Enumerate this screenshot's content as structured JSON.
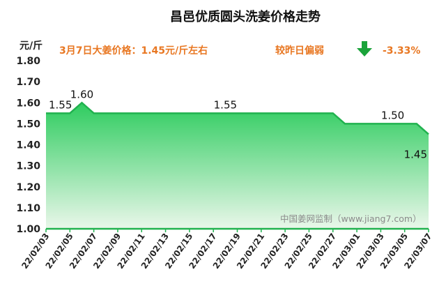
{
  "chart_data": {
    "type": "area",
    "title": "昌邑优质圆头洗姜价格走势",
    "ylabel": "元/斤",
    "ylim": [
      1.0,
      1.8
    ],
    "yticks": [
      "1.00",
      "1.10",
      "1.20",
      "1.30",
      "1.40",
      "1.50",
      "1.60",
      "1.70",
      "1.80"
    ],
    "x_ticks": [
      "22/02/03",
      "22/02/05",
      "22/02/07",
      "22/02/09",
      "22/02/11",
      "22/02/13",
      "22/02/15",
      "22/02/17",
      "22/02/19",
      "22/02/21",
      "22/02/23",
      "22/02/25",
      "22/02/27",
      "22/03/01",
      "22/03/03",
      "22/03/05",
      "22/03/07"
    ],
    "x": [
      "22/02/03",
      "22/02/04",
      "22/02/05",
      "22/02/06",
      "22/02/07",
      "22/02/08",
      "22/02/09",
      "22/02/10",
      "22/02/11",
      "22/02/12",
      "22/02/13",
      "22/02/14",
      "22/02/15",
      "22/02/16",
      "22/02/17",
      "22/02/18",
      "22/02/19",
      "22/02/20",
      "22/02/21",
      "22/02/22",
      "22/02/23",
      "22/02/24",
      "22/02/25",
      "22/02/26",
      "22/02/27",
      "22/02/28",
      "22/03/01",
      "22/03/02",
      "22/03/03",
      "22/03/04",
      "22/03/05",
      "22/03/06",
      "22/03/07"
    ],
    "values": [
      1.55,
      1.55,
      1.55,
      1.6,
      1.55,
      1.55,
      1.55,
      1.55,
      1.55,
      1.55,
      1.55,
      1.55,
      1.55,
      1.55,
      1.55,
      1.55,
      1.55,
      1.55,
      1.55,
      1.55,
      1.55,
      1.55,
      1.55,
      1.55,
      1.55,
      1.5,
      1.5,
      1.5,
      1.5,
      1.5,
      1.5,
      1.5,
      1.45
    ],
    "data_labels": [
      {
        "index": 0,
        "text": "1.55"
      },
      {
        "index": 3,
        "text": "1.60"
      },
      {
        "index": 15,
        "text": "1.55"
      },
      {
        "index": 29,
        "text": "1.50"
      },
      {
        "index": 32,
        "text": "1.45"
      }
    ],
    "grid": false,
    "colors": {
      "line": "#21b24f",
      "fill_top": "#2ecc5f",
      "fill_bottom": "#eaf7ea",
      "accent": "#e87722",
      "arrow": "#1aa33a"
    }
  },
  "info": {
    "price_text": "3月7日大姜价格：1.45元/斤左右",
    "trend_text": "较昨日偏弱",
    "arrow_icon": "down-arrow-icon",
    "change_text": "-3.33%"
  },
  "watermark": "中国姜网监制（www.jiang7.com）"
}
